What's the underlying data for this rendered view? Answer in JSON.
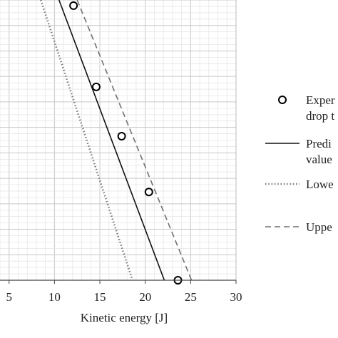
{
  "chart_data": {
    "type": "scatter",
    "xlabel": "Kinetic energy [J]",
    "ylabel": "",
    "xlim": [
      4,
      30
    ],
    "ylim": [
      0,
      1
    ],
    "xticks": [
      5,
      10,
      15,
      20,
      25,
      30
    ],
    "xtick_labels": [
      "5",
      "10",
      "15",
      "20",
      "25",
      "30"
    ],
    "grid": true,
    "legend_position": "right",
    "series": [
      {
        "name": "Experi… drop t…",
        "legend_lines": [
          "Exper",
          "drop t"
        ],
        "kind": "markers",
        "x": [
          12.1,
          14.6,
          17.4,
          20.4,
          23.6
        ],
        "y": [
          0.98,
          0.69,
          0.514,
          0.315,
          0.0
        ]
      },
      {
        "name": "Predi… value…",
        "legend_lines": [
          "Predi",
          "value"
        ],
        "kind": "solid",
        "x": [
          10.5,
          22.1
        ],
        "y": [
          1.0,
          0.0
        ]
      },
      {
        "name": "Lowe…",
        "legend_lines": [
          "Lowe"
        ],
        "kind": "dotted",
        "x": [
          8.5,
          18.6
        ],
        "y": [
          1.0,
          0.0
        ]
      },
      {
        "name": "Uppe…",
        "legend_lines": [
          "Uppe"
        ],
        "kind": "dashed",
        "x": [
          12.5,
          25.1
        ],
        "y": [
          1.0,
          0.0
        ]
      }
    ]
  }
}
